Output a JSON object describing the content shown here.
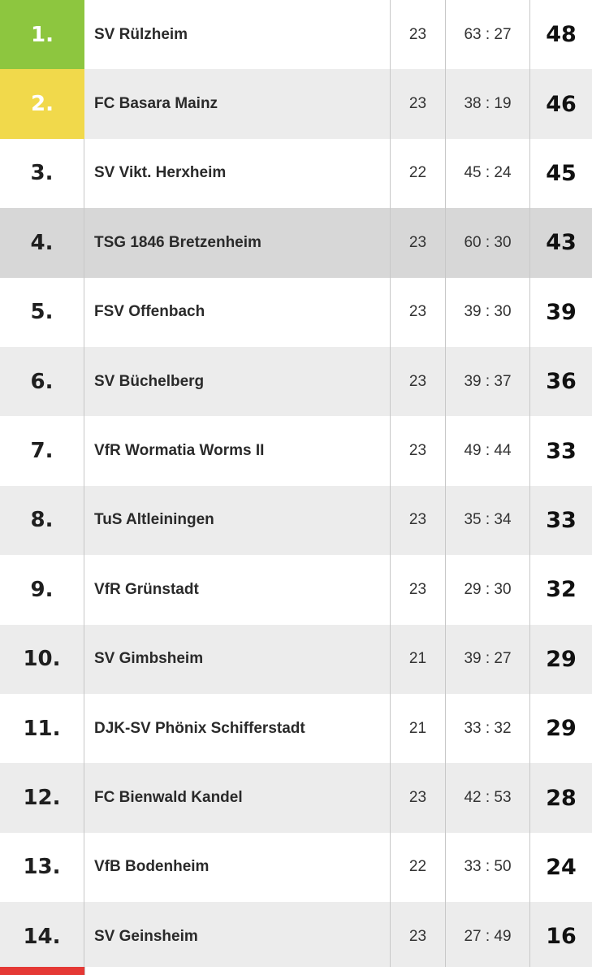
{
  "standings": [
    {
      "rank": "1.",
      "team": "SV Rülzheim",
      "games": "23",
      "goals": "63 : 27",
      "points": "48",
      "marker_color": "#8dc63f"
    },
    {
      "rank": "2.",
      "team": "FC Basara Mainz",
      "games": "23",
      "goals": "38 : 19",
      "points": "46",
      "marker_color": "#f1d94b"
    },
    {
      "rank": "3.",
      "team": "SV Vikt. Herxheim",
      "games": "22",
      "goals": "45 : 24",
      "points": "45"
    },
    {
      "rank": "4.",
      "team": "TSG 1846 Bretzenheim",
      "games": "23",
      "goals": "60 : 30",
      "points": "43",
      "highlighted": true
    },
    {
      "rank": "5.",
      "team": "FSV Offenbach",
      "games": "23",
      "goals": "39 : 30",
      "points": "39"
    },
    {
      "rank": "6.",
      "team": "SV Büchelberg",
      "games": "23",
      "goals": "39 : 37",
      "points": "36"
    },
    {
      "rank": "7.",
      "team": "VfR Wormatia Worms II",
      "games": "23",
      "goals": "49 : 44",
      "points": "33"
    },
    {
      "rank": "8.",
      "team": "TuS Altleiningen",
      "games": "23",
      "goals": "35 : 34",
      "points": "33"
    },
    {
      "rank": "9.",
      "team": "VfR Grünstadt",
      "games": "23",
      "goals": "29 : 30",
      "points": "32"
    },
    {
      "rank": "10.",
      "team": "SV Gimbsheim",
      "games": "21",
      "goals": "39 : 27",
      "points": "29"
    },
    {
      "rank": "11.",
      "team": "DJK-SV Phönix Schifferstadt",
      "games": "21",
      "goals": "33 : 32",
      "points": "29"
    },
    {
      "rank": "12.",
      "team": "FC Bienwald Kandel",
      "games": "23",
      "goals": "42 : 53",
      "points": "28"
    },
    {
      "rank": "13.",
      "team": "VfB Bodenheim",
      "games": "22",
      "goals": "33 : 50",
      "points": "24"
    },
    {
      "rank": "14.",
      "team": "SV Geinsheim",
      "games": "23",
      "goals": "27 : 49",
      "points": "16"
    }
  ],
  "colors": {
    "promotion": "#8dc63f",
    "relegation_playoff": "#f1d94b",
    "relegation": "#e53935",
    "highlight_row": "#d7d7d7",
    "alt_row": "#ececec"
  }
}
